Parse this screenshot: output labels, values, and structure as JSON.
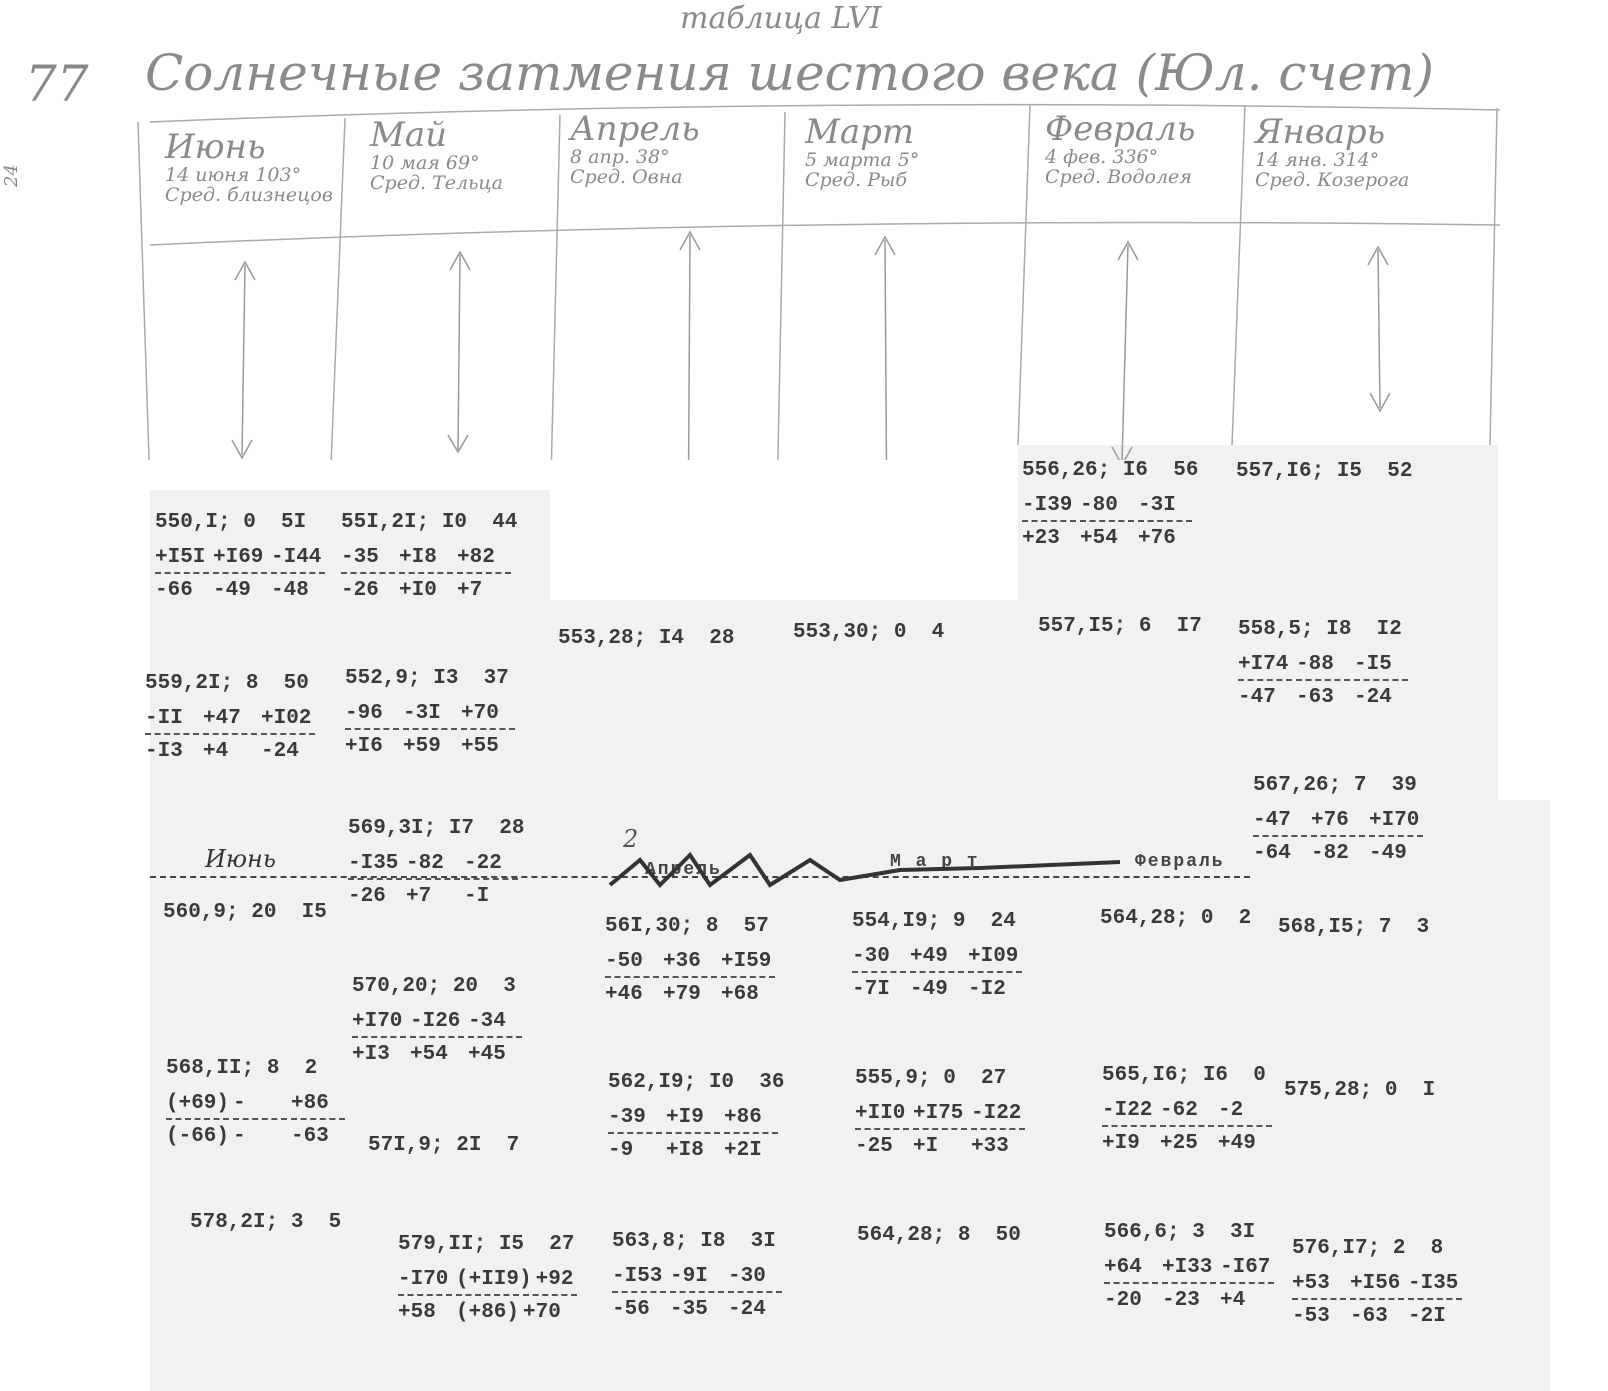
{
  "header": {
    "table_label": "таблица LVI",
    "page_number": "77",
    "side_note": "24",
    "title": "Солнечные затмения шестого века (Юл. счет)"
  },
  "columns": [
    {
      "month": "Июнь",
      "date": "14 июня 103°",
      "sign": "Сред. близнецов"
    },
    {
      "month": "Май",
      "date": "10 мая 69°",
      "sign": "Сред. Тельца"
    },
    {
      "month": "Апрель",
      "date": "8 апр. 38°",
      "sign": "Сред. Овна"
    },
    {
      "month": "Март",
      "date": "5 марта 5°",
      "sign": "Сред. Рыб"
    },
    {
      "month": "Февраль",
      "date": "4 фев. 336°",
      "sign": "Сред. Водолея"
    },
    {
      "month": "Январь",
      "date": "14 янв. 314°",
      "sign": "Сред. Козерога"
    }
  ],
  "lower_labels": {
    "june": "Июнь",
    "april": "Апрель",
    "march": "М а р т",
    "february": "Февраль",
    "sheet_number": "2"
  },
  "entries": [
    {
      "head": "550,I; 0  5I",
      "top": [
        "+I5I",
        "+I69",
        "-I44"
      ],
      "bottom": [
        "-66",
        "-49",
        "-48"
      ]
    },
    {
      "head": "559,2I; 8  50",
      "top": [
        "-II",
        "+47",
        "+I02"
      ],
      "bottom": [
        "-I3",
        "+4",
        "-24"
      ]
    },
    {
      "head": "560,9; 20  I5"
    },
    {
      "head": "568,II; 8  2",
      "top": [
        "(+69)",
        "-",
        "+86"
      ],
      "bottom": [
        "(-66)",
        "-",
        "-63"
      ]
    },
    {
      "head": "578,2I; 3  5"
    },
    {
      "head": "55I,2I; I0  44",
      "top": [
        "-35",
        "+I8",
        "+82"
      ],
      "bottom": [
        "-26",
        "+I0",
        "+7"
      ]
    },
    {
      "head": "552,9; I3  37",
      "top": [
        "-96",
        "-3I",
        "+70"
      ],
      "bottom": [
        "+I6",
        "+59",
        "+55"
      ]
    },
    {
      "head": "569,3I; I7  28",
      "top": [
        "-I35",
        "-82",
        "-22"
      ],
      "bottom": [
        "-26",
        "+7",
        "-I"
      ]
    },
    {
      "head": "570,20; 20  3",
      "top": [
        "+I70",
        "-I26",
        "-34"
      ],
      "bottom": [
        "+I3",
        "+54",
        "+45"
      ]
    },
    {
      "head": "57I,9; 2I  7"
    },
    {
      "head": "579,II; I5  27",
      "top": [
        "-I70",
        "(+II9)",
        "+92"
      ],
      "bottom": [
        "+58",
        "(+86)",
        "+70"
      ]
    },
    {
      "head": "553,28; I4  28"
    },
    {
      "head": "56I,30; 8  57",
      "top": [
        "-50",
        "+36",
        "+I59"
      ],
      "bottom": [
        "+46",
        "+79",
        "+68"
      ]
    },
    {
      "head": "562,I9; I0  36",
      "top": [
        "-39",
        "+I9",
        "+86"
      ],
      "bottom": [
        "-9",
        "+I8",
        "+2I"
      ]
    },
    {
      "head": "563,8; I8  3I",
      "top": [
        "-I53",
        "-9I",
        "-30"
      ],
      "bottom": [
        "-56",
        "-35",
        "-24"
      ]
    },
    {
      "head": "553,30; 0  4"
    },
    {
      "head": "554,I9; 9  24",
      "top": [
        "-30",
        "+49",
        "+I09"
      ],
      "bottom": [
        "-7I",
        "-49",
        "-I2"
      ]
    },
    {
      "head": "555,9; 0  27",
      "top": [
        "+II0",
        "+I75",
        "-I22"
      ],
      "bottom": [
        "-25",
        "+I",
        "+33"
      ]
    },
    {
      "head": "564,28; 8  50"
    },
    {
      "head": "556,26; I6  56",
      "top": [
        "-I39",
        "-80",
        "-3I"
      ],
      "bottom": [
        "+23",
        "+54",
        "+76"
      ]
    },
    {
      "head": "557,I5; 6  I7"
    },
    {
      "head": "564,28; 0  2"
    },
    {
      "head": "565,I6; I6  0",
      "top": [
        "-I22",
        "-62",
        "-2"
      ],
      "bottom": [
        "+I9",
        "+25",
        "+49"
      ]
    },
    {
      "head": "566,6; 3  3I",
      "top": [
        "+64",
        "+I33",
        "-I67"
      ],
      "bottom": [
        "-20",
        "-23",
        "+4"
      ]
    },
    {
      "head": "557,I6; I5  52"
    },
    {
      "head": "558,5; I8  I2",
      "top": [
        "+I74",
        "-88",
        "-I5"
      ],
      "bottom": [
        "-47",
        "-63",
        "-24"
      ]
    },
    {
      "head": "567,26; 7  39",
      "top": [
        "-47",
        "+76",
        "+I70"
      ],
      "bottom": [
        "-64",
        "-82",
        "-49"
      ]
    },
    {
      "head": "568,I5; 7  3"
    },
    {
      "head": "575,28; 0  I"
    },
    {
      "head": "576,I7; 2  8",
      "top": [
        "+53",
        "+I56",
        "-I35"
      ],
      "bottom": [
        "-53",
        "-63",
        "-2I"
      ]
    }
  ]
}
